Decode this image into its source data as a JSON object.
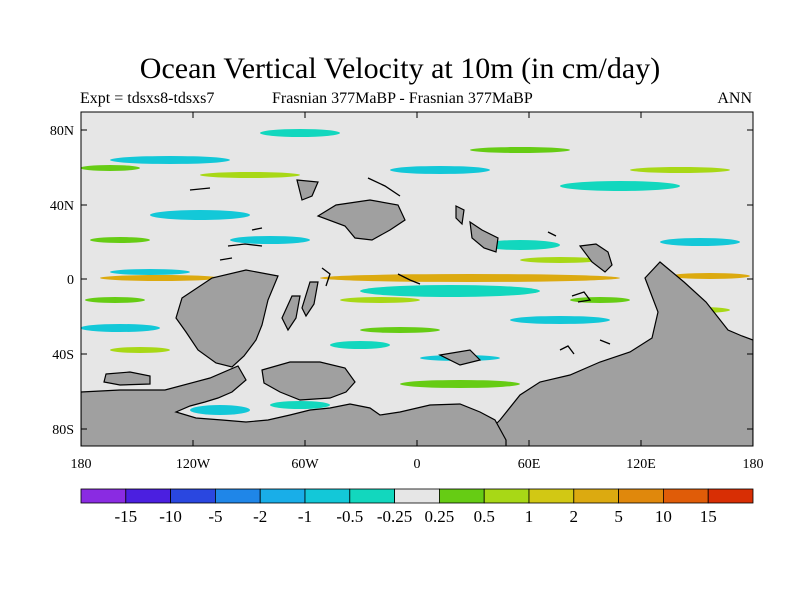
{
  "title": "Ocean Vertical Velocity at 10m (in cm/day)",
  "left_subtitle": "Expt = tdsxs8-tdsxs7",
  "center_subtitle": "Frasnian 377MaBP - Frasnian 377MaBP",
  "right_subtitle": "ANN",
  "lat_ticks": [
    "80N",
    "40N",
    "0",
    "40S",
    "80S"
  ],
  "lon_ticks": [
    "180",
    "120W",
    "60W",
    "0",
    "60E",
    "120E",
    "180"
  ],
  "colorbar": {
    "colors": [
      "#8a2be2",
      "#4b1fe0",
      "#2a47e0",
      "#1f86e8",
      "#19aee8",
      "#13c8d8",
      "#12d7be",
      "#e6e6e6",
      "#66cc14",
      "#a8d816",
      "#d2c814",
      "#dcaa10",
      "#e0880c",
      "#e05c08",
      "#d82e04"
    ],
    "labels": [
      "-15",
      "-10",
      "-5",
      "-2",
      "-1",
      "-0.5",
      "-0.25",
      "0.25",
      "0.5",
      "1",
      "2",
      "5",
      "10",
      "15"
    ]
  },
  "colors": {
    "background_field": "#e6e6e6",
    "land": "#a0a0a0",
    "coastline": "#000000"
  }
}
